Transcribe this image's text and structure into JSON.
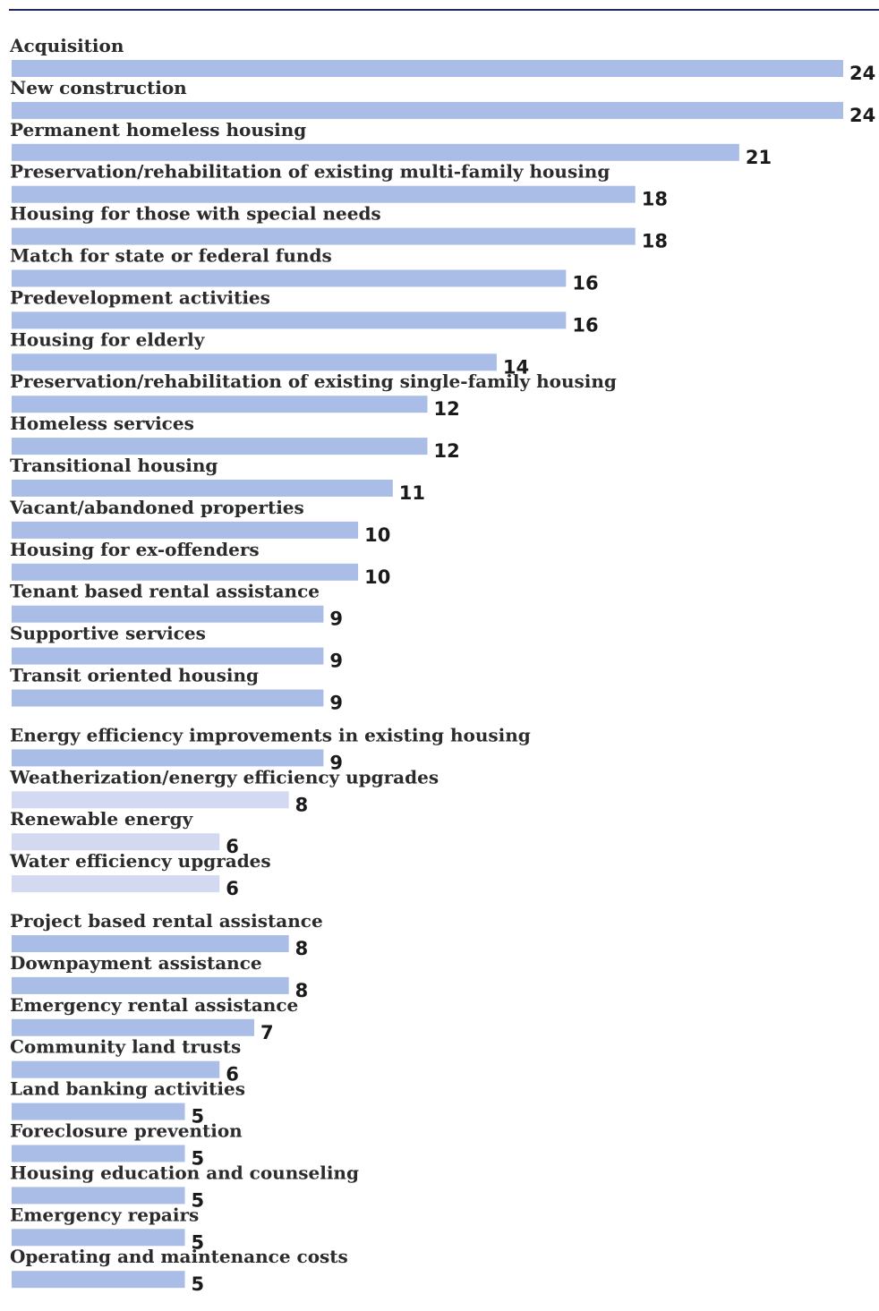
{
  "colors": {
    "bar": "#a9bde6",
    "bar_light": "#d2d9f0",
    "rule": "#1f2a5a"
  },
  "chart_data": {
    "type": "bar",
    "orientation": "horizontal",
    "grid": false,
    "legend": "none",
    "xlim": [
      0,
      24
    ],
    "groups": [
      {
        "categories": [
          "Acquisition",
          "New construction",
          "Permanent homeless housing",
          "Preservation/rehabilitation of existing multi-family housing",
          "Housing for those with special needs",
          "Match for state or federal funds",
          "Predevelopment activities",
          "Housing for elderly",
          "Preservation/rehabilitation of existing single-family housing",
          "Homeless services",
          "Transitional housing",
          "Vacant/abandoned properties",
          "Housing for ex-offenders",
          "Tenant based rental assistance",
          "Supportive services",
          "Transit oriented housing"
        ],
        "values": [
          24,
          24,
          21,
          18,
          18,
          16,
          16,
          14,
          12,
          12,
          11,
          10,
          10,
          9,
          9,
          9
        ]
      },
      {
        "categories": [
          "Energy efficiency improvements in existing housing",
          "Weatherization/energy efficiency upgrades",
          "Renewable energy",
          "Water efficiency upgrades"
        ],
        "values": [
          9,
          8,
          6,
          6
        ]
      },
      {
        "categories": [
          "Project based rental assistance",
          "Downpayment assistance",
          "Emergency rental assistance",
          "Community land trusts",
          "Land banking activities",
          "Foreclosure prevention",
          "Housing education and counseling",
          "Emergency repairs",
          "Operating and maintenance costs"
        ],
        "values": [
          8,
          8,
          7,
          6,
          5,
          5,
          5,
          5,
          5
        ]
      }
    ]
  }
}
